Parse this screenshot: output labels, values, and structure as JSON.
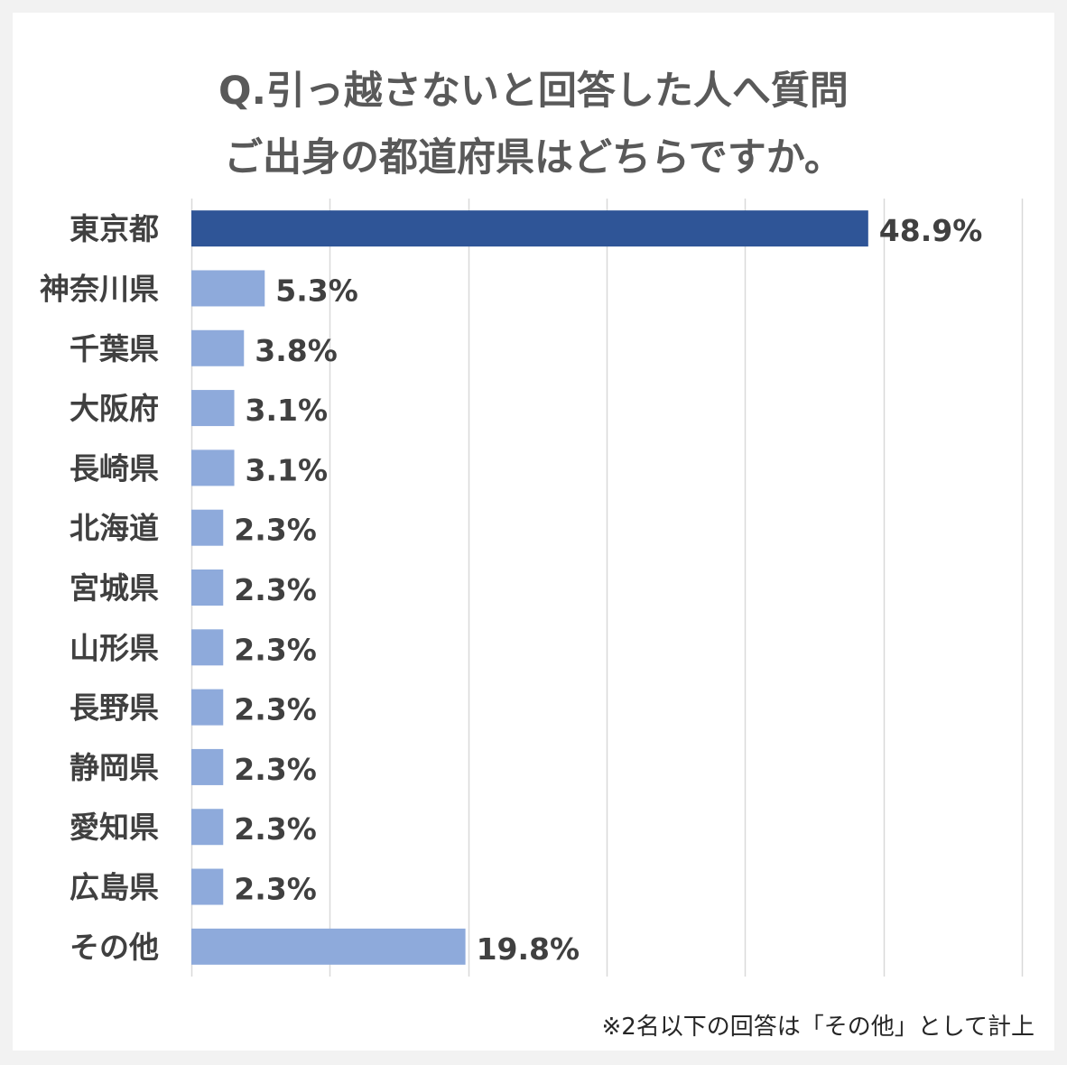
{
  "title_lines": [
    "Q.引っ越さないと回答した人へ質問",
    "ご出身の都道府県はどちらですか。"
  ],
  "footnote": "※2名以下の回答は「その他」として計上",
  "colors": {
    "highlight": "#2f5597",
    "bar": "#8eaadb",
    "grid": "#d9d9d9",
    "text": "#404040"
  },
  "chart_data": {
    "type": "bar",
    "orientation": "horizontal",
    "categories": [
      "東京都",
      "神奈川県",
      "千葉県",
      "大阪府",
      "長崎県",
      "北海道",
      "宮城県",
      "山形県",
      "長野県",
      "静岡県",
      "愛知県",
      "広島県",
      "その他"
    ],
    "values": [
      48.9,
      5.3,
      3.8,
      3.1,
      3.1,
      2.3,
      2.3,
      2.3,
      2.3,
      2.3,
      2.3,
      2.3,
      19.8
    ],
    "value_labels": [
      "48.9%",
      "5.3%",
      "3.8%",
      "3.1%",
      "3.1%",
      "2.3%",
      "2.3%",
      "2.3%",
      "2.3%",
      "2.3%",
      "2.3%",
      "2.3%",
      "19.8%"
    ],
    "highlight_index": 0,
    "xlim": [
      0,
      60
    ],
    "grid": true,
    "axis_tick_labels_shown": false
  }
}
